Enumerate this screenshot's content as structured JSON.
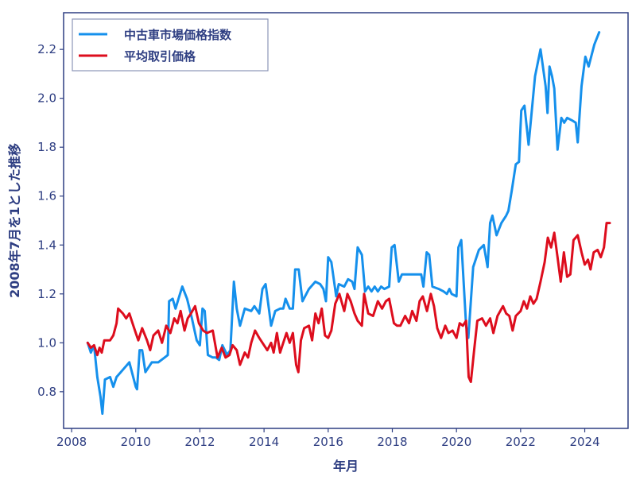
{
  "chart_data": {
    "type": "line",
    "title": "",
    "xlabel": "年月",
    "ylabel": "2008年7月を1とした推移",
    "xlim": [
      2007.75,
      2025.35
    ],
    "ylim": [
      0.65,
      2.35
    ],
    "x_ticks": [
      2008,
      2010,
      2012,
      2014,
      2016,
      2018,
      2020,
      2022,
      2024
    ],
    "y_ticks": [
      0.8,
      1.0,
      1.2,
      1.4,
      1.6,
      1.8,
      2.0,
      2.2
    ],
    "y_tick_labels": [
      "0.8",
      "1.0",
      "1.2",
      "1.4",
      "1.6",
      "1.8",
      "2.0",
      "2.2"
    ],
    "grid": false,
    "legend_position": "top-left",
    "series": [
      {
        "name": "中古車市場価格指数",
        "color": "#1590ec",
        "points": [
          [
            2008.5,
            1.0
          ],
          [
            2008.6,
            0.96
          ],
          [
            2008.7,
            0.99
          ],
          [
            2008.8,
            0.86
          ],
          [
            2008.9,
            0.78
          ],
          [
            2008.96,
            0.71
          ],
          [
            2009.04,
            0.85
          ],
          [
            2009.2,
            0.86
          ],
          [
            2009.3,
            0.82
          ],
          [
            2009.4,
            0.86
          ],
          [
            2009.6,
            0.89
          ],
          [
            2009.8,
            0.92
          ],
          [
            2010.0,
            0.82
          ],
          [
            2010.04,
            0.81
          ],
          [
            2010.12,
            0.97
          ],
          [
            2010.2,
            0.97
          ],
          [
            2010.3,
            0.88
          ],
          [
            2010.5,
            0.92
          ],
          [
            2010.7,
            0.92
          ],
          [
            2010.9,
            0.94
          ],
          [
            2011.0,
            0.95
          ],
          [
            2011.04,
            1.17
          ],
          [
            2011.15,
            1.18
          ],
          [
            2011.24,
            1.14
          ],
          [
            2011.38,
            1.2
          ],
          [
            2011.45,
            1.23
          ],
          [
            2011.6,
            1.18
          ],
          [
            2011.75,
            1.1
          ],
          [
            2011.9,
            1.01
          ],
          [
            2012.0,
            0.99
          ],
          [
            2012.08,
            1.14
          ],
          [
            2012.15,
            1.13
          ],
          [
            2012.25,
            0.95
          ],
          [
            2012.4,
            0.94
          ],
          [
            2012.5,
            0.94
          ],
          [
            2012.6,
            0.93
          ],
          [
            2012.7,
            0.99
          ],
          [
            2012.85,
            0.95
          ],
          [
            2012.95,
            0.97
          ],
          [
            2013.06,
            1.25
          ],
          [
            2013.15,
            1.14
          ],
          [
            2013.25,
            1.07
          ],
          [
            2013.4,
            1.14
          ],
          [
            2013.6,
            1.13
          ],
          [
            2013.7,
            1.15
          ],
          [
            2013.85,
            1.12
          ],
          [
            2013.95,
            1.22
          ],
          [
            2014.05,
            1.24
          ],
          [
            2014.16,
            1.13
          ],
          [
            2014.22,
            1.07
          ],
          [
            2014.35,
            1.13
          ],
          [
            2014.5,
            1.14
          ],
          [
            2014.6,
            1.14
          ],
          [
            2014.67,
            1.18
          ],
          [
            2014.8,
            1.14
          ],
          [
            2014.9,
            1.14
          ],
          [
            2014.97,
            1.3
          ],
          [
            2015.08,
            1.3
          ],
          [
            2015.2,
            1.17
          ],
          [
            2015.4,
            1.22
          ],
          [
            2015.6,
            1.25
          ],
          [
            2015.75,
            1.24
          ],
          [
            2015.85,
            1.22
          ],
          [
            2015.93,
            1.17
          ],
          [
            2016.0,
            1.35
          ],
          [
            2016.1,
            1.33
          ],
          [
            2016.25,
            1.19
          ],
          [
            2016.33,
            1.24
          ],
          [
            2016.5,
            1.23
          ],
          [
            2016.62,
            1.26
          ],
          [
            2016.75,
            1.25
          ],
          [
            2016.82,
            1.22
          ],
          [
            2016.92,
            1.39
          ],
          [
            2017.05,
            1.36
          ],
          [
            2017.15,
            1.21
          ],
          [
            2017.25,
            1.23
          ],
          [
            2017.35,
            1.21
          ],
          [
            2017.45,
            1.23
          ],
          [
            2017.55,
            1.21
          ],
          [
            2017.65,
            1.23
          ],
          [
            2017.75,
            1.22
          ],
          [
            2017.9,
            1.23
          ],
          [
            2017.98,
            1.39
          ],
          [
            2018.07,
            1.4
          ],
          [
            2018.2,
            1.25
          ],
          [
            2018.3,
            1.28
          ],
          [
            2018.5,
            1.28
          ],
          [
            2018.7,
            1.28
          ],
          [
            2018.9,
            1.28
          ],
          [
            2018.97,
            1.23
          ],
          [
            2019.07,
            1.37
          ],
          [
            2019.15,
            1.36
          ],
          [
            2019.25,
            1.23
          ],
          [
            2019.45,
            1.22
          ],
          [
            2019.6,
            1.21
          ],
          [
            2019.7,
            1.2
          ],
          [
            2019.78,
            1.22
          ],
          [
            2019.85,
            1.2
          ],
          [
            2020.0,
            1.19
          ],
          [
            2020.06,
            1.39
          ],
          [
            2020.15,
            1.42
          ],
          [
            2020.3,
            1.07
          ],
          [
            2020.37,
            1.02
          ],
          [
            2020.52,
            1.31
          ],
          [
            2020.7,
            1.38
          ],
          [
            2020.85,
            1.4
          ],
          [
            2020.97,
            1.31
          ],
          [
            2021.05,
            1.49
          ],
          [
            2021.12,
            1.52
          ],
          [
            2021.25,
            1.44
          ],
          [
            2021.4,
            1.49
          ],
          [
            2021.55,
            1.52
          ],
          [
            2021.62,
            1.54
          ],
          [
            2021.72,
            1.62
          ],
          [
            2021.85,
            1.73
          ],
          [
            2021.95,
            1.74
          ],
          [
            2022.02,
            1.95
          ],
          [
            2022.12,
            1.97
          ],
          [
            2022.25,
            1.81
          ],
          [
            2022.45,
            2.09
          ],
          [
            2022.62,
            2.2
          ],
          [
            2022.78,
            2.05
          ],
          [
            2022.84,
            1.94
          ],
          [
            2022.9,
            2.13
          ],
          [
            2022.98,
            2.09
          ],
          [
            2023.05,
            2.04
          ],
          [
            2023.15,
            1.79
          ],
          [
            2023.27,
            1.92
          ],
          [
            2023.36,
            1.9
          ],
          [
            2023.45,
            1.92
          ],
          [
            2023.6,
            1.91
          ],
          [
            2023.72,
            1.9
          ],
          [
            2023.78,
            1.82
          ],
          [
            2023.9,
            2.05
          ],
          [
            2024.02,
            2.17
          ],
          [
            2024.12,
            2.13
          ],
          [
            2024.3,
            2.22
          ],
          [
            2024.45,
            2.27
          ]
        ]
      },
      {
        "name": "平均取引価格",
        "color": "#dd0d1d",
        "points": [
          [
            2008.5,
            1.0
          ],
          [
            2008.6,
            0.98
          ],
          [
            2008.7,
            0.99
          ],
          [
            2008.8,
            0.95
          ],
          [
            2008.87,
            0.98
          ],
          [
            2008.94,
            0.96
          ],
          [
            2009.02,
            1.01
          ],
          [
            2009.2,
            1.01
          ],
          [
            2009.3,
            1.03
          ],
          [
            2009.4,
            1.08
          ],
          [
            2009.45,
            1.14
          ],
          [
            2009.6,
            1.12
          ],
          [
            2009.7,
            1.1
          ],
          [
            2009.8,
            1.12
          ],
          [
            2009.9,
            1.08
          ],
          [
            2010.0,
            1.04
          ],
          [
            2010.08,
            1.01
          ],
          [
            2010.2,
            1.06
          ],
          [
            2010.35,
            1.01
          ],
          [
            2010.45,
            0.97
          ],
          [
            2010.55,
            1.03
          ],
          [
            2010.7,
            1.05
          ],
          [
            2010.82,
            1.0
          ],
          [
            2010.95,
            1.07
          ],
          [
            2011.08,
            1.04
          ],
          [
            2011.2,
            1.1
          ],
          [
            2011.3,
            1.08
          ],
          [
            2011.4,
            1.13
          ],
          [
            2011.52,
            1.05
          ],
          [
            2011.62,
            1.1
          ],
          [
            2011.72,
            1.12
          ],
          [
            2011.85,
            1.15
          ],
          [
            2011.97,
            1.08
          ],
          [
            2012.1,
            1.05
          ],
          [
            2012.22,
            1.04
          ],
          [
            2012.4,
            1.05
          ],
          [
            2012.55,
            0.94
          ],
          [
            2012.68,
            0.98
          ],
          [
            2012.8,
            0.94
          ],
          [
            2012.92,
            0.95
          ],
          [
            2013.02,
            0.99
          ],
          [
            2013.15,
            0.97
          ],
          [
            2013.25,
            0.91
          ],
          [
            2013.4,
            0.96
          ],
          [
            2013.5,
            0.94
          ],
          [
            2013.6,
            1.0
          ],
          [
            2013.72,
            1.05
          ],
          [
            2013.85,
            1.02
          ],
          [
            2013.95,
            1.0
          ],
          [
            2014.1,
            0.97
          ],
          [
            2014.22,
            1.0
          ],
          [
            2014.3,
            0.96
          ],
          [
            2014.4,
            1.04
          ],
          [
            2014.5,
            0.96
          ],
          [
            2014.6,
            1.0
          ],
          [
            2014.7,
            1.04
          ],
          [
            2014.8,
            1.0
          ],
          [
            2014.9,
            1.04
          ],
          [
            2015.0,
            0.91
          ],
          [
            2015.07,
            0.88
          ],
          [
            2015.15,
            1.01
          ],
          [
            2015.25,
            1.06
          ],
          [
            2015.4,
            1.07
          ],
          [
            2015.5,
            1.01
          ],
          [
            2015.6,
            1.12
          ],
          [
            2015.7,
            1.08
          ],
          [
            2015.8,
            1.14
          ],
          [
            2015.9,
            1.03
          ],
          [
            2016.0,
            1.02
          ],
          [
            2016.1,
            1.05
          ],
          [
            2016.22,
            1.16
          ],
          [
            2016.35,
            1.2
          ],
          [
            2016.5,
            1.13
          ],
          [
            2016.6,
            1.2
          ],
          [
            2016.7,
            1.17
          ],
          [
            2016.82,
            1.12
          ],
          [
            2016.92,
            1.09
          ],
          [
            2017.05,
            1.07
          ],
          [
            2017.12,
            1.2
          ],
          [
            2017.25,
            1.12
          ],
          [
            2017.4,
            1.11
          ],
          [
            2017.55,
            1.17
          ],
          [
            2017.68,
            1.14
          ],
          [
            2017.8,
            1.17
          ],
          [
            2017.9,
            1.18
          ],
          [
            2018.05,
            1.08
          ],
          [
            2018.15,
            1.07
          ],
          [
            2018.25,
            1.07
          ],
          [
            2018.4,
            1.11
          ],
          [
            2018.52,
            1.08
          ],
          [
            2018.62,
            1.13
          ],
          [
            2018.75,
            1.09
          ],
          [
            2018.85,
            1.17
          ],
          [
            2018.95,
            1.19
          ],
          [
            2019.08,
            1.13
          ],
          [
            2019.2,
            1.2
          ],
          [
            2019.3,
            1.15
          ],
          [
            2019.4,
            1.06
          ],
          [
            2019.52,
            1.02
          ],
          [
            2019.65,
            1.07
          ],
          [
            2019.75,
            1.04
          ],
          [
            2019.88,
            1.05
          ],
          [
            2020.0,
            1.02
          ],
          [
            2020.1,
            1.08
          ],
          [
            2020.2,
            1.07
          ],
          [
            2020.3,
            1.09
          ],
          [
            2020.38,
            0.86
          ],
          [
            2020.45,
            0.84
          ],
          [
            2020.55,
            0.97
          ],
          [
            2020.65,
            1.09
          ],
          [
            2020.8,
            1.1
          ],
          [
            2020.92,
            1.07
          ],
          [
            2021.05,
            1.1
          ],
          [
            2021.15,
            1.04
          ],
          [
            2021.28,
            1.11
          ],
          [
            2021.45,
            1.15
          ],
          [
            2021.55,
            1.12
          ],
          [
            2021.65,
            1.11
          ],
          [
            2021.75,
            1.05
          ],
          [
            2021.85,
            1.11
          ],
          [
            2022.0,
            1.13
          ],
          [
            2022.1,
            1.17
          ],
          [
            2022.2,
            1.14
          ],
          [
            2022.3,
            1.19
          ],
          [
            2022.4,
            1.16
          ],
          [
            2022.5,
            1.18
          ],
          [
            2022.62,
            1.25
          ],
          [
            2022.75,
            1.33
          ],
          [
            2022.85,
            1.43
          ],
          [
            2022.95,
            1.39
          ],
          [
            2023.05,
            1.45
          ],
          [
            2023.15,
            1.35
          ],
          [
            2023.25,
            1.25
          ],
          [
            2023.35,
            1.37
          ],
          [
            2023.45,
            1.27
          ],
          [
            2023.55,
            1.28
          ],
          [
            2023.65,
            1.42
          ],
          [
            2023.78,
            1.44
          ],
          [
            2023.9,
            1.37
          ],
          [
            2024.0,
            1.32
          ],
          [
            2024.1,
            1.34
          ],
          [
            2024.18,
            1.3
          ],
          [
            2024.28,
            1.37
          ],
          [
            2024.4,
            1.38
          ],
          [
            2024.5,
            1.35
          ],
          [
            2024.6,
            1.39
          ],
          [
            2024.68,
            1.49
          ],
          [
            2024.78,
            1.49
          ]
        ]
      }
    ]
  }
}
